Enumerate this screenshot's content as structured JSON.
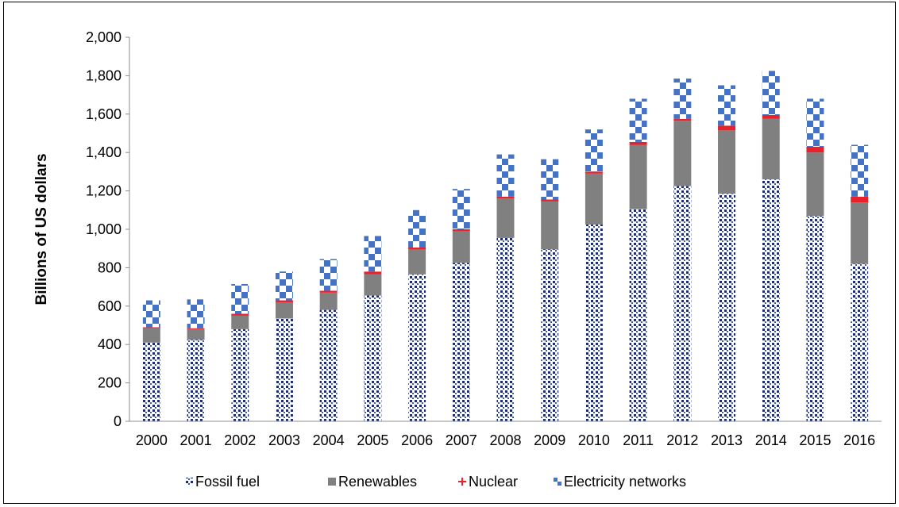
{
  "chart_data": {
    "type": "bar",
    "stacked": true,
    "title": "",
    "xlabel": "",
    "ylabel": "Billions of US dollars",
    "ylim": [
      0,
      2000
    ],
    "yticks": [
      0,
      200,
      400,
      600,
      800,
      1000,
      1200,
      1400,
      1600,
      1800,
      2000
    ],
    "ytick_labels": [
      "0",
      "200",
      "400",
      "600",
      "800",
      "1,000",
      "1,200",
      "1,400",
      "1,600",
      "1,800",
      "2,000"
    ],
    "grid": false,
    "legend_position": "bottom",
    "categories": [
      "2000",
      "2001",
      "2002",
      "2003",
      "2004",
      "2005",
      "2006",
      "2007",
      "2008",
      "2009",
      "2010",
      "2011",
      "2012",
      "2013",
      "2014",
      "2015",
      "2016"
    ],
    "series": [
      {
        "name": "Fossil fuel",
        "color": "#1f2d6b",
        "pattern": "dotted",
        "values": [
          410,
          425,
          480,
          535,
          580,
          655,
          765,
          825,
          955,
          895,
          1025,
          1105,
          1225,
          1185,
          1260,
          1070,
          820
        ]
      },
      {
        "name": "Renewables",
        "color": "#808080",
        "pattern": "solid",
        "values": [
          75,
          55,
          70,
          85,
          90,
          110,
          130,
          165,
          205,
          250,
          265,
          335,
          340,
          330,
          315,
          330,
          320
        ]
      },
      {
        "name": "Nuclear",
        "color": "#e8222a",
        "pattern": "solid",
        "values": [
          5,
          5,
          10,
          10,
          10,
          15,
          10,
          10,
          10,
          10,
          10,
          15,
          10,
          25,
          20,
          30,
          30
        ]
      },
      {
        "name": "Electricity networks",
        "color": "#4472c4",
        "pattern": "checker",
        "values": [
          140,
          150,
          155,
          150,
          165,
          185,
          195,
          210,
          220,
          210,
          220,
          225,
          210,
          210,
          230,
          250,
          270
        ]
      }
    ]
  }
}
